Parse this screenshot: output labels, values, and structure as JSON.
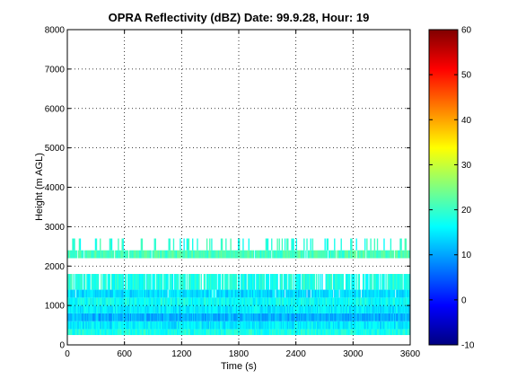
{
  "chart_data": {
    "type": "heatmap",
    "title": "OPRA Reflectivity (dBZ)  Date: 99.9.28, Hour: 19",
    "xlabel": "Time (s)",
    "ylabel": "Height (m AGL)",
    "xlim": [
      0,
      3600
    ],
    "ylim": [
      0,
      8000
    ],
    "xticks": [
      0,
      600,
      1200,
      1800,
      2400,
      3000,
      3600
    ],
    "yticks": [
      0,
      1000,
      2000,
      3000,
      4000,
      5000,
      6000,
      7000,
      8000
    ],
    "grid": true,
    "colorbar": {
      "colormap": "jet",
      "range": [
        -10,
        60
      ],
      "ticks": [
        -10,
        0,
        10,
        20,
        30,
        40,
        50,
        60
      ]
    },
    "layers": [
      {
        "height_range": [
          250,
          400
        ],
        "dbz": 18,
        "coverage": 1.0
      },
      {
        "height_range": [
          400,
          600
        ],
        "dbz": 15,
        "coverage": 1.0
      },
      {
        "height_range": [
          600,
          800
        ],
        "dbz": 11,
        "coverage": 1.0
      },
      {
        "height_range": [
          800,
          1000
        ],
        "dbz": 15,
        "coverage": 1.0
      },
      {
        "height_range": [
          1000,
          1200
        ],
        "dbz": 17,
        "coverage": 1.0
      },
      {
        "height_range": [
          1200,
          1400
        ],
        "dbz": 14,
        "coverage": 0.95
      },
      {
        "height_range": [
          1400,
          1800
        ],
        "dbz": 18,
        "coverage": 0.85
      },
      {
        "height_range": [
          2200,
          2400
        ],
        "dbz": 21,
        "coverage": 0.97
      },
      {
        "height_range": [
          2400,
          2700
        ],
        "dbz": 19,
        "coverage": 0.2
      }
    ]
  }
}
